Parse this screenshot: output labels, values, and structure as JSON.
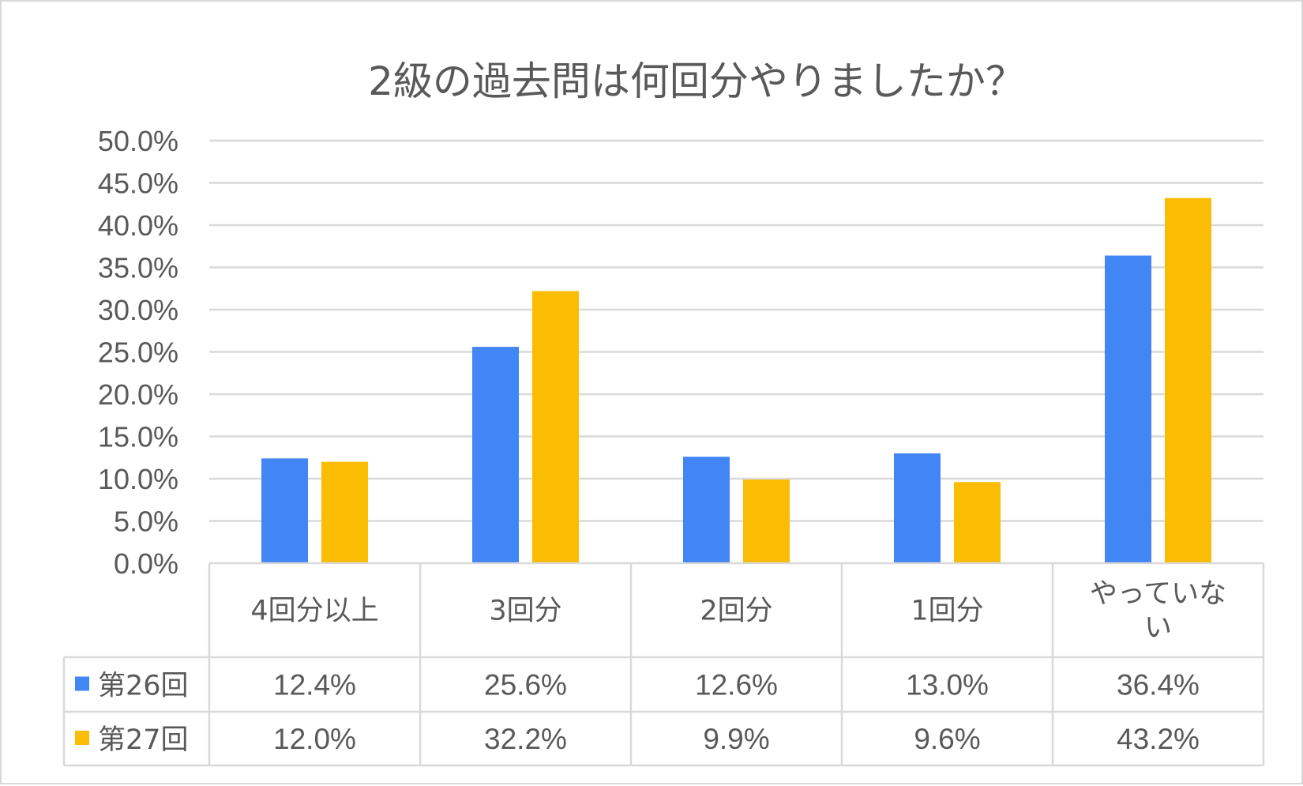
{
  "chart_data": {
    "type": "bar",
    "title": "2級の過去問は何回分やりましたか？",
    "categories": [
      "4回分以上",
      "3回分",
      "2回分",
      "1回分",
      "やっていない"
    ],
    "series": [
      {
        "name": "第26回",
        "values": [
          12.4,
          25.6,
          12.6,
          13.0,
          36.4
        ],
        "labels": [
          "12.4%",
          "25.6%",
          "12.6%",
          "13.0%",
          "36.4%"
        ],
        "color": "#4285f4"
      },
      {
        "name": "第27回",
        "values": [
          12.0,
          32.2,
          9.9,
          9.6,
          43.2
        ],
        "labels": [
          "12.0%",
          "32.2%",
          "9.9%",
          "9.6%",
          "43.2%"
        ],
        "color": "#fbbc04"
      }
    ],
    "ylim": [
      0,
      50
    ],
    "yticks": [
      0,
      5,
      10,
      15,
      20,
      25,
      30,
      35,
      40,
      45,
      50
    ],
    "ytick_labels": [
      "0.0%",
      "5.0%",
      "10.0%",
      "15.0%",
      "20.0%",
      "25.0%",
      "30.0%",
      "35.0%",
      "40.0%",
      "45.0%",
      "50.0%"
    ],
    "grid": true,
    "legend": "data-table",
    "gridline_color": "#d9d9d9",
    "text_color": "#595959"
  }
}
